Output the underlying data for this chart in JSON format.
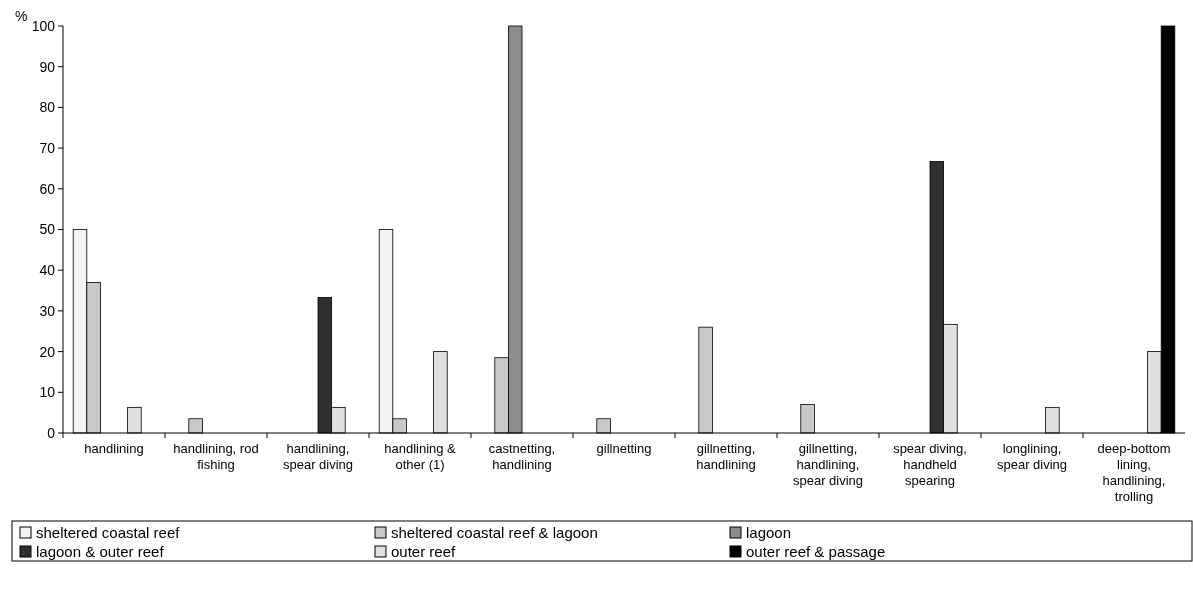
{
  "chart_data": {
    "type": "bar",
    "ylabel": "%",
    "categories": [
      "handlining",
      "handlining, rod fishing",
      "handlining, spear diving",
      "handlining & other (1)",
      "castnetting, handlining",
      "gillnetting",
      "gillnetting, handlining",
      "gillnetting, handlining, spear diving",
      "spear diving, handheld spearing",
      "longlining, spear diving",
      "deep-bottom lining, handlining, trolling"
    ],
    "series": [
      {
        "name": "sheltered coastal reef",
        "color": "#f4f4f4",
        "values": [
          50,
          null,
          null,
          50,
          null,
          null,
          null,
          null,
          null,
          null,
          null
        ]
      },
      {
        "name": "sheltered coastal reef & lagoon",
        "color": "#c8c8c8",
        "values": [
          37,
          3.5,
          null,
          3.5,
          18.5,
          3.5,
          26,
          7,
          null,
          null,
          null
        ]
      },
      {
        "name": "lagoon",
        "color": "#8c8c8c",
        "values": [
          null,
          null,
          null,
          null,
          100,
          null,
          null,
          null,
          null,
          null,
          null
        ]
      },
      {
        "name": "lagoon & outer reef",
        "color": "#303030",
        "values": [
          null,
          null,
          33.3,
          null,
          null,
          null,
          null,
          null,
          66.7,
          null,
          null
        ]
      },
      {
        "name": "outer reef",
        "color": "#e0e0e0",
        "values": [
          6.3,
          null,
          6.3,
          20,
          null,
          null,
          null,
          null,
          26.7,
          6.3,
          20
        ]
      },
      {
        "name": "outer reef & passage",
        "color": "#000000",
        "values": [
          null,
          null,
          null,
          null,
          null,
          null,
          null,
          null,
          null,
          null,
          100
        ]
      }
    ],
    "ylim": [
      0,
      100
    ],
    "yticks": [
      0,
      10,
      20,
      30,
      40,
      50,
      60,
      70,
      80,
      90,
      100
    ],
    "grid": false,
    "legend": "bottom"
  }
}
